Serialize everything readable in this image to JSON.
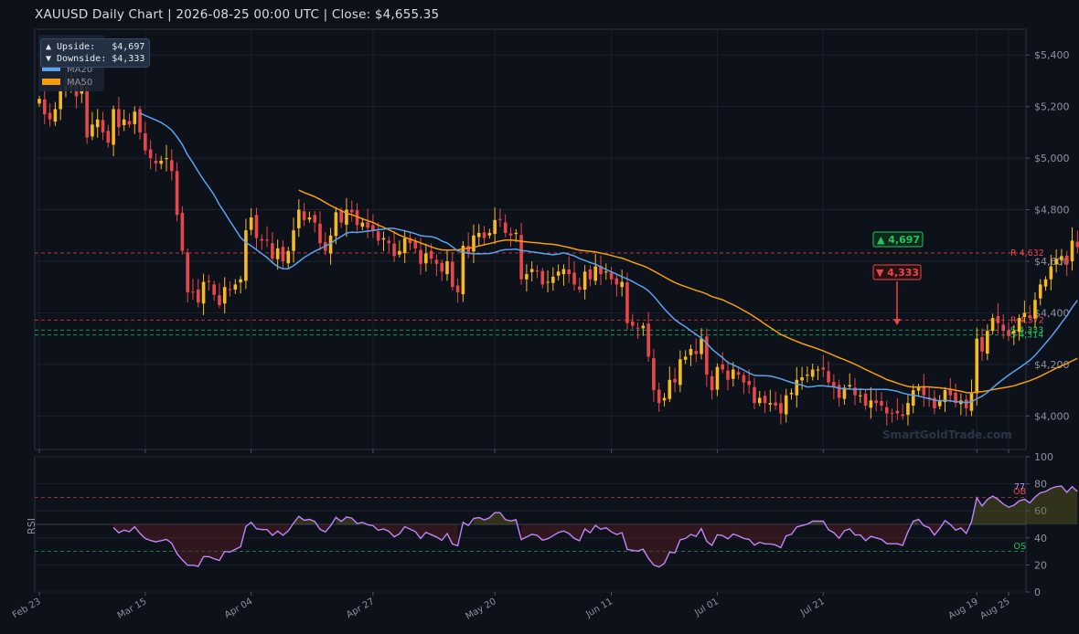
{
  "header": {
    "title": "XAUUSD  Daily Chart  |  2026-08-25 00:00 UTC  |  Close: $4,655.35"
  },
  "targets": {
    "upside_line": "▲ Upside:   $4,697",
    "downside_line": "▼ Downside: $4,333",
    "upside_badge": "▲ 4,697",
    "downside_badge": "▼ 4,333"
  },
  "watermark": "SmartGoldTrade.com",
  "colors": {
    "up": "#f5b922",
    "down": "#e8474a",
    "ma20": "#5aa2f0",
    "ma50": "#f59e0b",
    "rsi": "#c085f5",
    "resistance": "#e8474a",
    "support": "#22c55e"
  },
  "chart_data": [
    {
      "type": "candlestick",
      "title": "XAUUSD  Daily Chart  |  2026-08-25 00:00 UTC  |  Close: $4,655.35",
      "x_start": "2026-02-23",
      "x_tick_labels": [
        "Feb 23",
        "Mar 15",
        "Apr 04",
        "Apr 27",
        "May 20",
        "Jun 11",
        "Jul 01",
        "Jul 21",
        "Aug 19",
        "Aug 25"
      ],
      "x_tick_dates": [
        "2026-02-23",
        "2026-03-15",
        "2026-04-04",
        "2026-04-27",
        "2026-05-20",
        "2026-06-11",
        "2026-07-01",
        "2026-07-21",
        "2026-08-19",
        "2026-08-25"
      ],
      "y_tick_labels": [
        "$4,000",
        "$4,200",
        "$4,400",
        "$4,600",
        "$4,800",
        "$5,000",
        "$5,200",
        "$5,400"
      ],
      "y_tick_values": [
        4000,
        4200,
        4400,
        4600,
        4800,
        5000,
        5200,
        5400
      ],
      "ylim": [
        3870,
        5500
      ],
      "legend": [
        "MA20",
        "MA50"
      ],
      "legend_position": "top-left",
      "close": [
        5230,
        5170,
        5150,
        5190,
        5260,
        5280,
        5300,
        5240,
        5290,
        5080,
        5130,
        5150,
        5100,
        5060,
        5190,
        5120,
        5150,
        5130,
        5180,
        5100,
        5030,
        5000,
        4980,
        4990,
        5000,
        4950,
        4780,
        4640,
        4480,
        4480,
        4440,
        4520,
        4520,
        4470,
        4430,
        4500,
        4490,
        4510,
        4530,
        4720,
        4770,
        4690,
        4680,
        4680,
        4610,
        4650,
        4600,
        4640,
        4720,
        4800,
        4760,
        4770,
        4750,
        4670,
        4640,
        4700,
        4790,
        4750,
        4800,
        4790,
        4740,
        4750,
        4730,
        4720,
        4680,
        4690,
        4670,
        4620,
        4640,
        4690,
        4670,
        4650,
        4590,
        4630,
        4610,
        4590,
        4560,
        4600,
        4500,
        4480,
        4660,
        4630,
        4700,
        4710,
        4690,
        4710,
        4760,
        4760,
        4710,
        4700,
        4710,
        4530,
        4550,
        4570,
        4560,
        4510,
        4520,
        4540,
        4560,
        4570,
        4550,
        4510,
        4490,
        4560,
        4530,
        4580,
        4550,
        4560,
        4530,
        4510,
        4520,
        4360,
        4350,
        4340,
        4350,
        4230,
        4100,
        4050,
        4070,
        4140,
        4130,
        4220,
        4230,
        4260,
        4240,
        4300,
        4160,
        4100,
        4190,
        4180,
        4140,
        4180,
        4160,
        4130,
        4120,
        4050,
        4070,
        4050,
        4050,
        4040,
        4010,
        4080,
        4090,
        4140,
        4150,
        4160,
        4180,
        4180,
        4180,
        4130,
        4110,
        4070,
        4110,
        4120,
        4080,
        4080,
        4040,
        4060,
        4050,
        4040,
        4010,
        4010,
        4010,
        4000,
        4050,
        4100,
        4110,
        4080,
        4070,
        4030,
        4060,
        4100,
        4080,
        4050,
        4060,
        4030,
        4090,
        4300,
        4250,
        4330,
        4380,
        4360,
        4330,
        4310,
        4330,
        4380,
        4400,
        4380,
        4450,
        4510,
        4530,
        4580,
        4610,
        4620,
        4590,
        4680,
        4655
      ]
    },
    {
      "type": "line",
      "ylabel": "RSI",
      "ylim": [
        0,
        100
      ],
      "y_tick_labels": [
        "0",
        "20",
        "40",
        "60",
        "80",
        "100"
      ],
      "overbought": 70,
      "oversold": 30,
      "overbought_label": "OB",
      "oversold_label": "OS",
      "last_value_label": "77"
    }
  ],
  "levels": [
    {
      "label": "R 4,632",
      "value": 4632,
      "kind": "resistance"
    },
    {
      "label": "R 4,372",
      "value": 4372,
      "kind": "resistance"
    },
    {
      "label": "S 4,333",
      "value": 4333,
      "kind": "support"
    },
    {
      "label": "S 4,314",
      "value": 4314,
      "kind": "support"
    }
  ]
}
